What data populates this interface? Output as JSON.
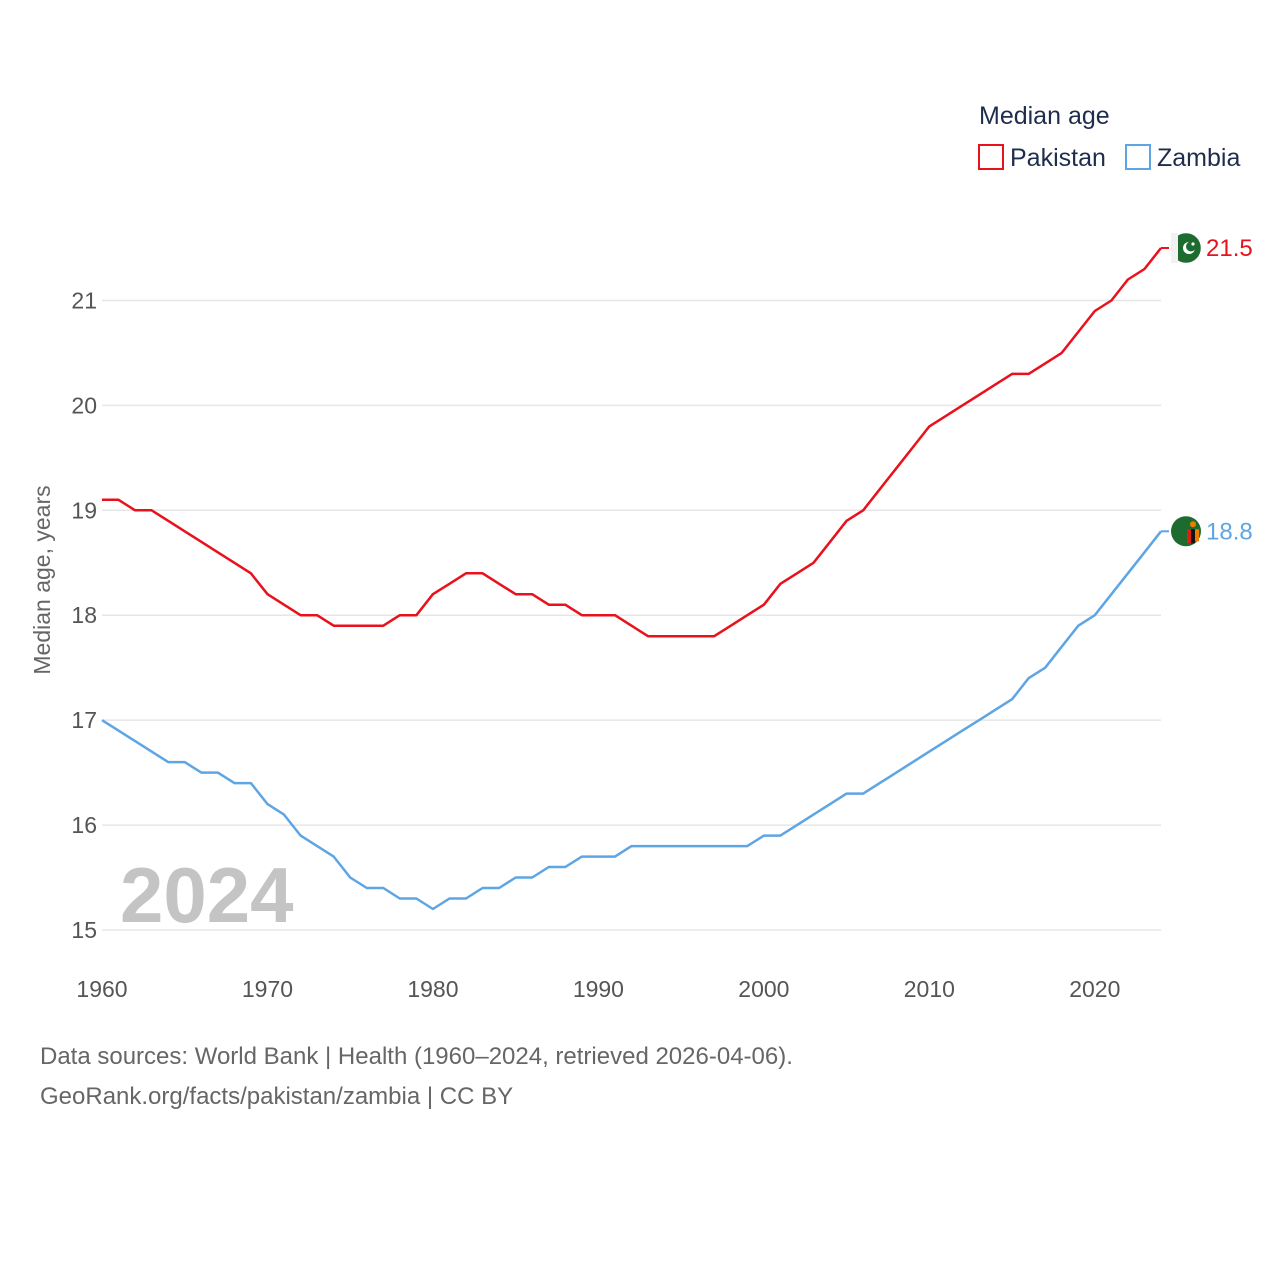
{
  "colors": {
    "pakistan": "#e8111c",
    "zambia": "#5ea5e4",
    "grid": "#e6e6e6"
  },
  "chart_data": {
    "type": "line",
    "title": "Median age",
    "ylabel": "Median age, years",
    "xlabel": "",
    "xlim": [
      1960,
      2024
    ],
    "ylim": [
      15,
      21.5
    ],
    "yticks": [
      15,
      16,
      17,
      18,
      19,
      20,
      21
    ],
    "xticks": [
      1960,
      1970,
      1980,
      1990,
      2000,
      2010,
      2020
    ],
    "year_watermark": "2024",
    "legend_position": "top-right",
    "x": [
      1960,
      1961,
      1962,
      1963,
      1964,
      1965,
      1966,
      1967,
      1968,
      1969,
      1970,
      1971,
      1972,
      1973,
      1974,
      1975,
      1976,
      1977,
      1978,
      1979,
      1980,
      1981,
      1982,
      1983,
      1984,
      1985,
      1986,
      1987,
      1988,
      1989,
      1990,
      1991,
      1992,
      1993,
      1994,
      1995,
      1996,
      1997,
      1998,
      1999,
      2000,
      2001,
      2002,
      2003,
      2004,
      2005,
      2006,
      2007,
      2008,
      2009,
      2010,
      2011,
      2012,
      2013,
      2014,
      2015,
      2016,
      2017,
      2018,
      2019,
      2020,
      2021,
      2022,
      2023,
      2024
    ],
    "series": [
      {
        "name": "Pakistan",
        "color": "#e8111c",
        "end_label": "21.5",
        "flag_icon": "pakistan-flag-icon",
        "values": [
          19.1,
          19.1,
          19.0,
          19.0,
          18.9,
          18.8,
          18.7,
          18.6,
          18.5,
          18.4,
          18.2,
          18.1,
          18.0,
          18.0,
          17.9,
          17.9,
          17.9,
          17.9,
          18.0,
          18.0,
          18.2,
          18.3,
          18.4,
          18.4,
          18.3,
          18.2,
          18.2,
          18.1,
          18.1,
          18.0,
          18.0,
          18.0,
          17.9,
          17.8,
          17.8,
          17.8,
          17.8,
          17.8,
          17.9,
          18.0,
          18.1,
          18.3,
          18.4,
          18.5,
          18.7,
          18.9,
          19.0,
          19.2,
          19.4,
          19.6,
          19.8,
          19.9,
          20.0,
          20.1,
          20.2,
          20.3,
          20.3,
          20.4,
          20.5,
          20.7,
          20.9,
          21.0,
          21.2,
          21.3,
          21.5
        ]
      },
      {
        "name": "Zambia",
        "color": "#5ea5e4",
        "end_label": "18.8",
        "flag_icon": "zambia-flag-icon",
        "values": [
          17.0,
          16.9,
          16.8,
          16.7,
          16.6,
          16.6,
          16.5,
          16.5,
          16.4,
          16.4,
          16.2,
          16.1,
          15.9,
          15.8,
          15.7,
          15.5,
          15.4,
          15.4,
          15.3,
          15.3,
          15.2,
          15.3,
          15.3,
          15.4,
          15.4,
          15.5,
          15.5,
          15.6,
          15.6,
          15.7,
          15.7,
          15.7,
          15.8,
          15.8,
          15.8,
          15.8,
          15.8,
          15.8,
          15.8,
          15.8,
          15.9,
          15.9,
          16.0,
          16.1,
          16.2,
          16.3,
          16.3,
          16.4,
          16.5,
          16.6,
          16.7,
          16.8,
          16.9,
          17.0,
          17.1,
          17.2,
          17.4,
          17.5,
          17.7,
          17.9,
          18.0,
          18.2,
          18.4,
          18.6,
          18.8
        ]
      }
    ]
  },
  "footer": {
    "line1": "Data sources: World Bank | Health (1960–2024, retrieved 2026-04-06).",
    "line2": "GeoRank.org/facts/pakistan/zambia | CC BY"
  }
}
